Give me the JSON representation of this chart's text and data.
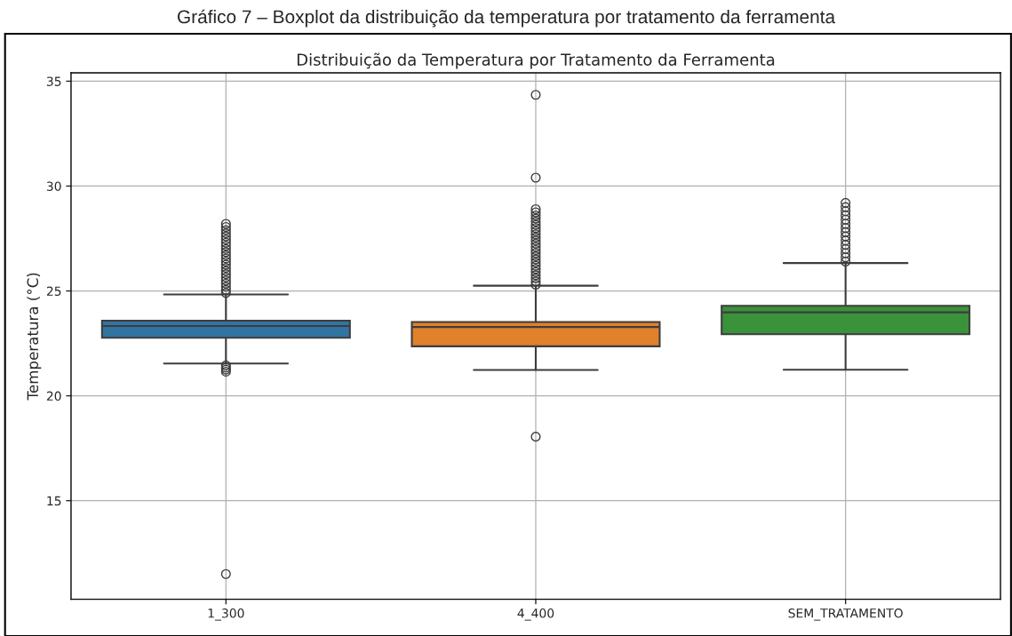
{
  "chart_data": {
    "type": "box",
    "title": "Gráfico 7 – Boxplot da distribuição da temperatura por tratamento da ferramenta",
    "subtitle": "Distribuição da Temperatura por Tratamento da Ferramenta",
    "ylabel": "Temperatura (°C)",
    "categories": [
      "1_300",
      "4_400",
      "SEM_TRATAMENTO"
    ],
    "colors": [
      "#3274a1",
      "#e1812c",
      "#3a923a"
    ],
    "boxes": [
      {
        "low": 21.54,
        "q1": 22.77,
        "median": 23.33,
        "q3": 23.58,
        "high": 24.83,
        "outliers": [
          24.9,
          25.05,
          25.2,
          25.35,
          25.5,
          25.65,
          25.8,
          25.95,
          26.1,
          26.25,
          26.4,
          26.55,
          26.7,
          26.85,
          27.0,
          27.15,
          27.3,
          27.45,
          27.6,
          27.75,
          27.9,
          28.05,
          28.2,
          21.45,
          21.35,
          21.25,
          21.15,
          11.5
        ]
      },
      {
        "low": 21.23,
        "q1": 22.36,
        "median": 23.28,
        "q3": 23.52,
        "high": 25.25,
        "outliers": [
          25.3,
          25.45,
          25.6,
          25.75,
          25.9,
          26.05,
          26.2,
          26.35,
          26.5,
          26.65,
          26.8,
          26.95,
          27.1,
          27.25,
          27.4,
          27.55,
          27.7,
          27.85,
          28.0,
          28.15,
          28.3,
          28.45,
          28.6,
          28.75,
          28.9,
          30.4,
          34.35,
          18.05
        ]
      },
      {
        "low": 21.24,
        "q1": 22.94,
        "median": 23.98,
        "q3": 24.29,
        "high": 26.33,
        "outliers": [
          26.4,
          26.6,
          26.8,
          27.0,
          27.2,
          27.4,
          27.6,
          27.8,
          28.0,
          28.2,
          28.4,
          28.6,
          28.8,
          29.0,
          29.2
        ]
      }
    ],
    "ylim": [
      10.3,
      35.4
    ],
    "yticks": [
      15,
      20,
      25,
      30,
      35
    ],
    "grid": true
  }
}
